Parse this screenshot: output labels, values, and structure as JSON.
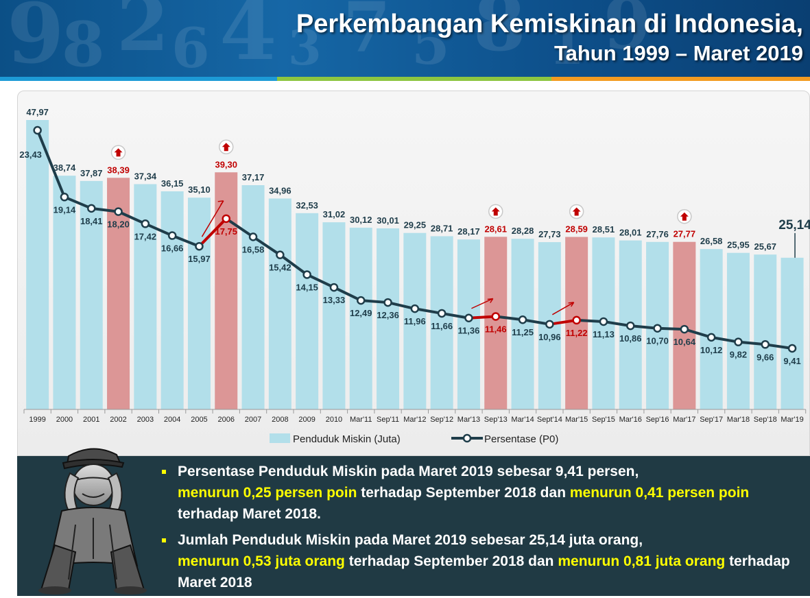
{
  "header": {
    "title_line1": "Perkembangan Kemiskinan di Indonesia,",
    "title_line2": "Tahun 1999 –  Maret 2019"
  },
  "colors": {
    "bar_normal": "#b2dfea",
    "bar_highlight": "#dc9696",
    "line": "#1f3d4a",
    "highlight_text": "#c00000",
    "label_text": "#1f3d4a",
    "bullet_highlight": "#ffff00",
    "stripe": [
      "#1d9ad6",
      "#8dc641",
      "#f39b21"
    ]
  },
  "chart_data": {
    "type": "bar+line",
    "categories": [
      "1999",
      "2000",
      "2001",
      "2002",
      "2003",
      "2004",
      "2005",
      "2006",
      "2007",
      "2008",
      "2009",
      "2010",
      "Mar'11",
      "Sep'11",
      "Mar'12",
      "Sep'12",
      "Mar'13",
      "Sep'13",
      "Mar'14",
      "Sept'14",
      "Mar'15",
      "Sep'15",
      "Mar'16",
      "Sep'16",
      "Mar'17",
      "Sep'17",
      "Mar'18",
      "Sep'18",
      "Mar'19"
    ],
    "bars": {
      "name": "Penduduk Miskin (Juta)",
      "values": [
        47.97,
        38.74,
        37.87,
        38.39,
        37.34,
        36.15,
        35.1,
        39.3,
        37.17,
        34.96,
        32.53,
        31.02,
        30.12,
        30.01,
        29.25,
        28.71,
        28.17,
        28.61,
        28.28,
        27.73,
        28.59,
        28.51,
        28.01,
        27.76,
        27.77,
        26.58,
        25.95,
        25.67,
        25.14
      ],
      "labels": [
        "47,97",
        "38,74",
        "37,87",
        "38,39",
        "37,34",
        "36,15",
        "35,10",
        "39,30",
        "37,17",
        "34,96",
        "32,53",
        "31,02",
        "30,12",
        "30,01",
        "29,25",
        "28,71",
        "28,17",
        "28,61",
        "28,28",
        "27,73",
        "28,59",
        "28,51",
        "28,01",
        "27,76",
        "27,77",
        "26,58",
        "25,95",
        "25,67",
        "25,14"
      ]
    },
    "line": {
      "name": "Persentase (P0)",
      "values": [
        23.43,
        19.14,
        18.41,
        18.2,
        17.42,
        16.66,
        15.97,
        17.75,
        16.58,
        15.42,
        14.15,
        13.33,
        12.49,
        12.36,
        11.96,
        11.66,
        11.36,
        11.46,
        11.25,
        10.96,
        11.22,
        11.13,
        10.86,
        10.7,
        10.64,
        10.12,
        9.82,
        9.66,
        9.41
      ],
      "labels": [
        "23,43",
        "19,14",
        "18,41",
        "18,20",
        "17,42",
        "16,66",
        "15,97",
        "17,75",
        "16,58",
        "15,42",
        "14,15",
        "13,33",
        "12,49",
        "12,36",
        "11,96",
        "11,66",
        "11,36",
        "11,46",
        "11,25",
        "10,96",
        "11,22",
        "11,13",
        "10,86",
        "10,70",
        "10,64",
        "10,12",
        "9,82",
        "9,66",
        "9,41"
      ]
    },
    "increase_indices": [
      3,
      7,
      17,
      20,
      24
    ],
    "line_increase_indices": [
      7,
      17,
      20
    ],
    "legend": [
      "Penduduk Miskin (Juta)",
      "Persentase (P0)"
    ],
    "legend_position": "bottom",
    "grid": false
  },
  "bullets": [
    {
      "parts": [
        {
          "text": "Persentase Penduduk Miskin pada Maret 2019 sebesar 9,41 persen, ",
          "hl": false
        },
        {
          "text": "menurun 0,25 persen poin",
          "hl": true
        },
        {
          "text": " terhadap September 2018 dan ",
          "hl": false
        },
        {
          "text": "menurun 0,41 persen poin",
          "hl": true
        },
        {
          "text": " terhadap Maret 2018.",
          "hl": false
        }
      ]
    },
    {
      "parts": [
        {
          "text": "Jumlah Penduduk Miskin pada Maret 2019 sebesar  25,14  juta orang, ",
          "hl": false
        },
        {
          "text": "menurun 0,53 juta orang",
          "hl": true
        },
        {
          "text": " terhadap September  2018 dan ",
          "hl": false
        },
        {
          "text": "menurun 0,81 juta orang",
          "hl": true
        },
        {
          "text": " terhadap Maret 2018",
          "hl": false
        }
      ]
    }
  ]
}
